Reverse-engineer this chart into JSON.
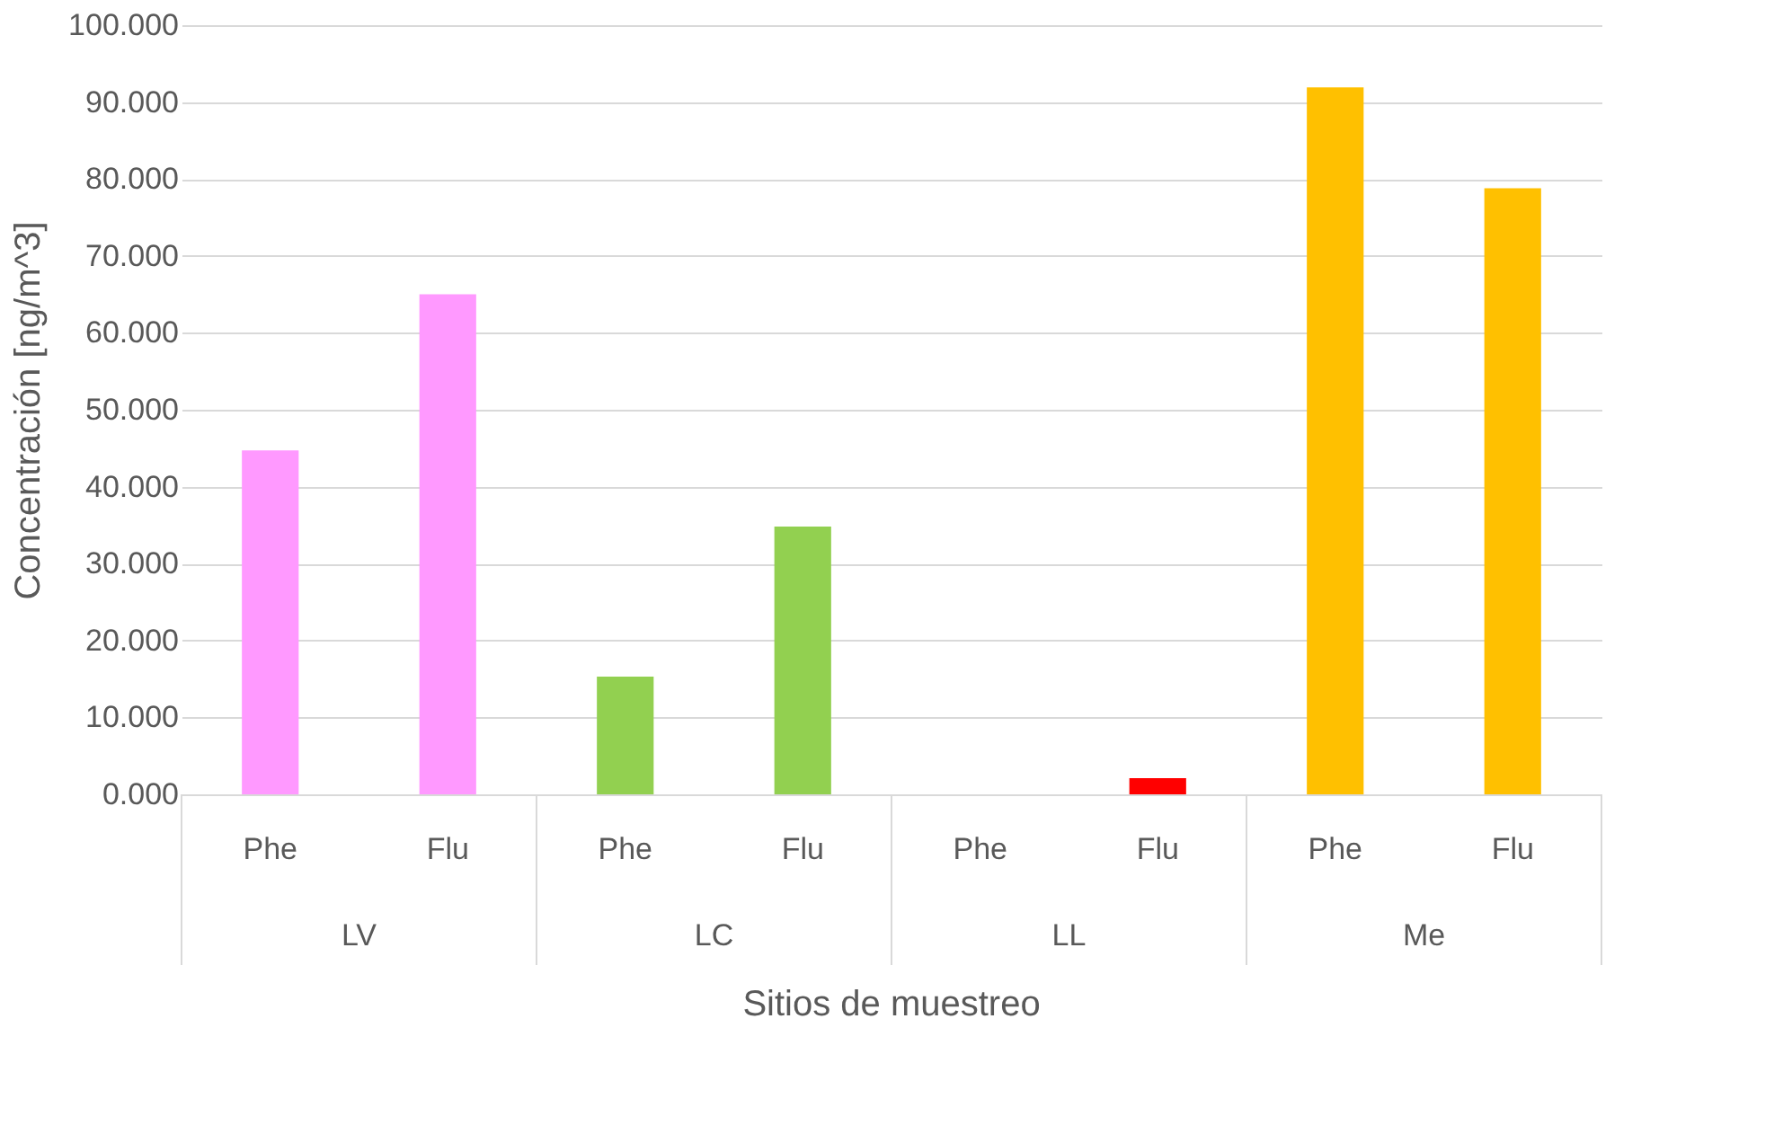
{
  "chart_data": {
    "type": "bar",
    "xlabel": "Sitios de muestreo",
    "ylabel": "Concentración  [ng/m^3]",
    "categories": [
      "Phe",
      "Flu",
      "Phe",
      "Flu",
      "Phe",
      "Flu",
      "Phe",
      "Flu"
    ],
    "values": [
      44.7,
      65.0,
      15.3,
      34.8,
      null,
      2.1,
      91.9,
      78.8
    ],
    "colors": [
      "#ff99ff",
      "#ff99ff",
      "#92d050",
      "#92d050",
      "#ff0000",
      "#ff0000",
      "#ffc000",
      "#ffc000"
    ],
    "annotations": [
      "LV",
      "LC",
      "LL",
      "Me"
    ],
    "ylim": [
      0,
      100
    ],
    "yticks": [
      {
        "value": 0,
        "label": "0.000"
      },
      {
        "value": 10,
        "label": "10.000"
      },
      {
        "value": 20,
        "label": "20.000"
      },
      {
        "value": 30,
        "label": "30.000"
      },
      {
        "value": 40,
        "label": "40.000"
      },
      {
        "value": 50,
        "label": "50.000"
      },
      {
        "value": 60,
        "label": "60.000"
      },
      {
        "value": 70,
        "label": "70.000"
      },
      {
        "value": 80,
        "label": "80.000"
      },
      {
        "value": 90,
        "label": "90.000"
      },
      {
        "value": 100,
        "label": "100.000"
      }
    ],
    "grid": "y"
  }
}
